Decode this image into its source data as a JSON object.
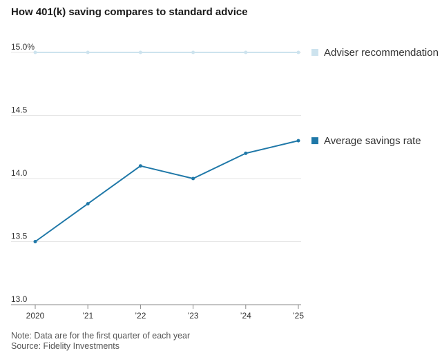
{
  "chart_data": {
    "type": "line",
    "title": "How 401(k) saving compares to standard advice",
    "categories": [
      "2020",
      "’21",
      "’22",
      "’23",
      "’24",
      "’25"
    ],
    "ylim": [
      13.0,
      15.0
    ],
    "yticks": [
      "13.0",
      "13.5",
      "14.0",
      "14.5",
      "15.0%"
    ],
    "ytick_values": [
      13.0,
      13.5,
      14.0,
      14.5,
      15.0
    ],
    "series": [
      {
        "name": "Adviser recommendation",
        "color": "#cde3ee",
        "values": [
          15.0,
          15.0,
          15.0,
          15.0,
          15.0,
          15.0
        ]
      },
      {
        "name": "Average savings rate",
        "color": "#1f78a8",
        "values": [
          13.5,
          13.8,
          14.1,
          14.0,
          14.2,
          14.3
        ]
      }
    ],
    "note": "Note: Data are for the first quarter of each year",
    "source": "Source: Fidelity Investments"
  }
}
